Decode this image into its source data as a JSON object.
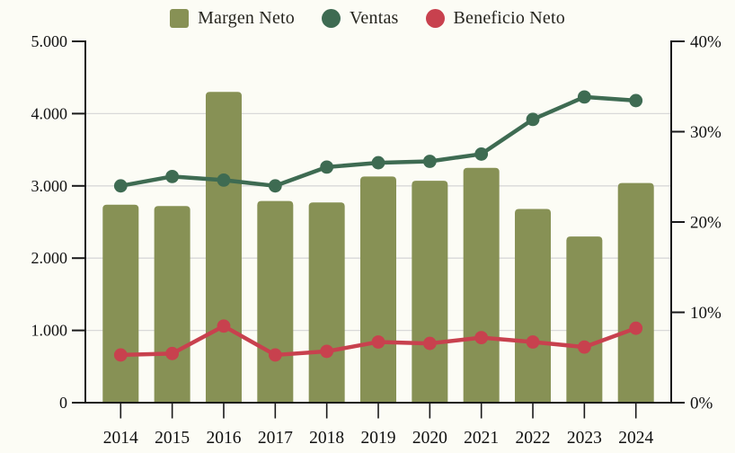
{
  "page": {
    "background": "#fcfcf5"
  },
  "legend": {
    "items": [
      {
        "label": "Margen Neto",
        "shape": "square",
        "color": "#879155"
      },
      {
        "label": "Ventas",
        "shape": "circle",
        "color": "#3e6b52"
      },
      {
        "label": "Beneficio Neto",
        "shape": "circle",
        "color": "#c8414e"
      }
    ]
  },
  "chart_data": {
    "type": "bar",
    "subtype": "combo-bar-and-lines",
    "categories": [
      "2014",
      "2015",
      "2016",
      "2017",
      "2018",
      "2019",
      "2020",
      "2021",
      "2022",
      "2023",
      "2024"
    ],
    "series": [
      {
        "name": "Margen Neto",
        "render": "bar",
        "axis": "left",
        "color": "#879155",
        "values": [
          2740,
          2720,
          4300,
          2790,
          2770,
          3130,
          3070,
          3250,
          2680,
          2300,
          3040
        ]
      },
      {
        "name": "Ventas",
        "render": "line",
        "axis": "left",
        "color": "#3e6b52",
        "values": [
          3000,
          3130,
          3080,
          3000,
          3260,
          3320,
          3340,
          3440,
          3920,
          4230,
          4180
        ]
      },
      {
        "name": "Beneficio Neto",
        "render": "line",
        "axis": "left",
        "color": "#c8414e",
        "values": [
          660,
          680,
          1060,
          660,
          710,
          840,
          820,
          900,
          840,
          770,
          1030
        ]
      }
    ],
    "left_axis": {
      "min": 0,
      "max": 5000,
      "tick_step": 1000,
      "tick_labels": [
        "0",
        "1.000",
        "2.000",
        "3.000",
        "4.000",
        "5.000"
      ]
    },
    "right_axis": {
      "min": 0,
      "max": 40,
      "tick_step": 10,
      "tick_labels": [
        "0%",
        "10%",
        "20%",
        "30%",
        "40%"
      ]
    },
    "grid": {
      "show": true,
      "color": "#d9d9d9",
      "at_left_values": [
        1000,
        2000,
        3000,
        4000
      ]
    },
    "legend_position": "top",
    "title": "",
    "xlabel": "",
    "ylabel": ""
  },
  "colors": {
    "axis_line": "#1a1a1a",
    "tick_text": "#111111",
    "gridline": "#d9d9d9",
    "background": "#fcfcf5"
  }
}
